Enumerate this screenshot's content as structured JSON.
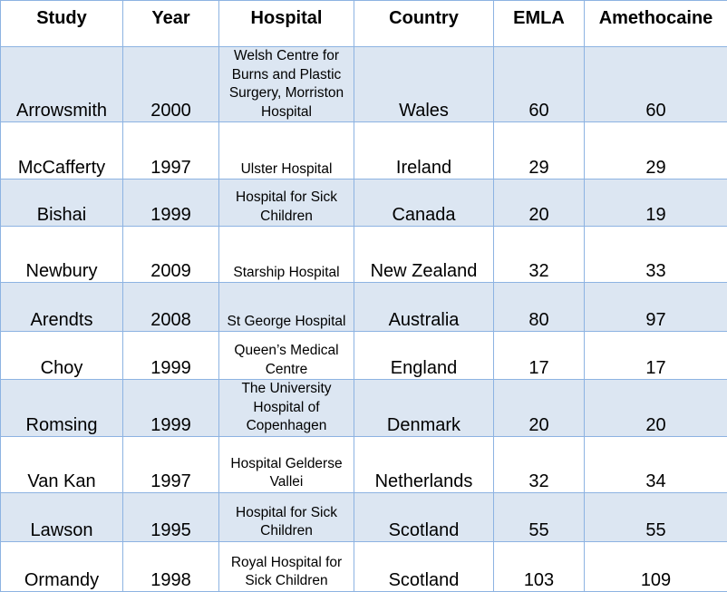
{
  "table": {
    "headers": [
      "Study",
      "Year",
      "Hospital",
      "Country",
      "EMLA",
      "Amethocaine"
    ],
    "rows": [
      {
        "study": "Arrowsmith",
        "year": "2000",
        "hospital": "Welsh Centre for Burns and Plastic Surgery, Morriston Hospital",
        "country": "Wales",
        "emla": "60",
        "amethocaine": "60"
      },
      {
        "study": "McCafferty",
        "year": "1997",
        "hospital": "Ulster Hospital",
        "country": "Ireland",
        "emla": "29",
        "amethocaine": "29"
      },
      {
        "study": "Bishai",
        "year": "1999",
        "hospital": "Hospital for Sick Children",
        "country": "Canada",
        "emla": "20",
        "amethocaine": "19"
      },
      {
        "study": "Newbury",
        "year": "2009",
        "hospital": "Starship Hospital",
        "country": "New Zealand",
        "emla": "32",
        "amethocaine": "33"
      },
      {
        "study": "Arendts",
        "year": "2008",
        "hospital": "St George Hospital",
        "country": "Australia",
        "emla": "80",
        "amethocaine": "97"
      },
      {
        "study": "Choy",
        "year": "1999",
        "hospital": "Queen’s Medical Centre",
        "country": "England",
        "emla": "17",
        "amethocaine": "17"
      },
      {
        "study": "Romsing",
        "year": "1999",
        "hospital": "The University Hospital of Copenhagen",
        "country": "Denmark",
        "emla": "20",
        "amethocaine": "20"
      },
      {
        "study": "Van Kan",
        "year": "1997",
        "hospital": "Hospital Gelderse Vallei",
        "country": "Netherlands",
        "emla": "32",
        "amethocaine": "34"
      },
      {
        "study": "Lawson",
        "year": "1995",
        "hospital": "Hospital for Sick Children",
        "country": "Scotland",
        "emla": "55",
        "amethocaine": "55"
      },
      {
        "study": "Ormandy",
        "year": "1998",
        "hospital": "Royal Hospital for Sick Children",
        "country": "Scotland",
        "emla": "103",
        "amethocaine": "109"
      }
    ]
  },
  "colors": {
    "shaded_row": "#dce6f2",
    "plain_row": "#ffffff",
    "border": "#8db3e2"
  }
}
